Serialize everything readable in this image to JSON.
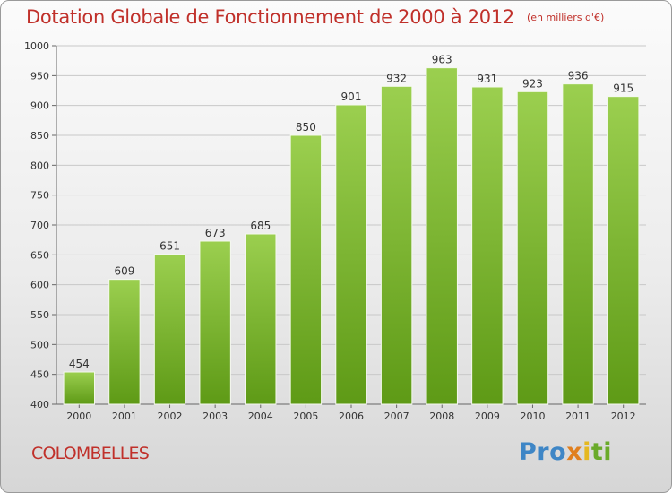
{
  "header": {
    "title": "Dotation Globale de Fonctionnement de 2000 à 2012",
    "unit": "(en milliers d'€)"
  },
  "footer": {
    "commune": "COLOMBELLES",
    "logo": {
      "p1": "Pro",
      "p2": "x",
      "p3": "i",
      "p4": "ti"
    }
  },
  "colors": {
    "bar_top": "#9bcf4f",
    "bar_bottom": "#5e9a16",
    "title": "#c0302a",
    "grid": "#c8c8c8"
  },
  "chart_data": {
    "type": "bar",
    "title": "Dotation Globale de Fonctionnement de 2000 à 2012",
    "subtitle": "(en milliers d'€)",
    "categories": [
      "2000",
      "2001",
      "2002",
      "2003",
      "2004",
      "2005",
      "2006",
      "2007",
      "2008",
      "2009",
      "2010",
      "2011",
      "2012"
    ],
    "values": [
      454,
      609,
      651,
      673,
      685,
      850,
      901,
      932,
      963,
      931,
      923,
      936,
      915
    ],
    "ylim": [
      400,
      1000
    ],
    "yticks": [
      400,
      450,
      500,
      550,
      600,
      650,
      700,
      750,
      800,
      850,
      900,
      950,
      1000
    ],
    "xlabel": "",
    "ylabel": "",
    "grid": true,
    "data_labels": true
  }
}
